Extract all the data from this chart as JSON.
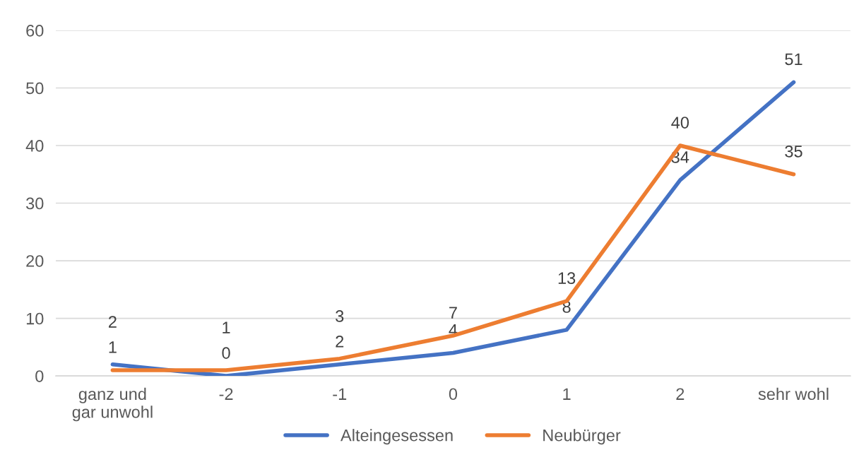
{
  "chart_data": {
    "type": "line",
    "categories": [
      "ganz und\ngar unwohl",
      "-2",
      "-1",
      "0",
      "1",
      "2",
      "sehr wohl"
    ],
    "series": [
      {
        "name": "Alteingesessen",
        "color": "#4472c4",
        "values": [
          2,
          0,
          2,
          4,
          8,
          34,
          51
        ]
      },
      {
        "name": "Neubürger",
        "color": "#ed7d31",
        "values": [
          1,
          1,
          3,
          7,
          13,
          40,
          35
        ]
      }
    ],
    "ylim": [
      0,
      60
    ],
    "yticks": [
      0,
      10,
      20,
      30,
      40,
      50,
      60
    ],
    "grid": "y",
    "legend": "bottom",
    "data_labels": true,
    "marker": "none",
    "line_style": "solid"
  }
}
